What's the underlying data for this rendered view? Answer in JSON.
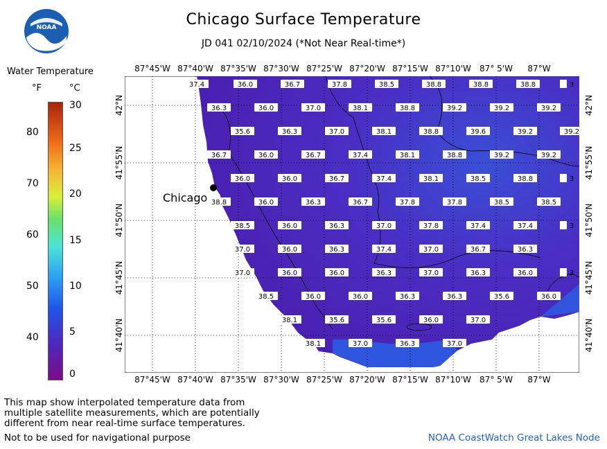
{
  "header": {
    "title": "Chicago Surface Temperature",
    "subtitle": "JD 041 02/10/2024 (*Not Near Real-time*)"
  },
  "logo": {
    "text": "NOAA"
  },
  "legend": {
    "title": "Water Temperature",
    "unit_f": "°F",
    "unit_c": "°C",
    "f_labels": [
      "80",
      "70",
      "60",
      "50",
      "40"
    ],
    "c_labels": [
      "30",
      "25",
      "20",
      "15",
      "10",
      "5",
      "0"
    ],
    "colors": [
      "#7a0d86",
      "#4a2bbf",
      "#1f57e8",
      "#2fa6f0",
      "#4fe2d6",
      "#6be06a",
      "#d8ef3a",
      "#f7b334",
      "#ee6a18",
      "#a7240d"
    ]
  },
  "map": {
    "city": "Chicago",
    "lon_labels": [
      "87°45'W",
      "87°40'W",
      "87°35'W",
      "87°30'W",
      "87°25'W",
      "87°20'W",
      "87°15'W",
      "87°10'W",
      "87° 5'W",
      "87°W"
    ],
    "lat_labels": [
      "42°N",
      "41°55'N",
      "41°50'N",
      "41°45'N",
      "41°40'N"
    ],
    "rows": [
      [
        "37.4",
        "36.0",
        "36.7",
        "37.8",
        "38.5",
        "38.8",
        "38.8",
        "38.8",
        "3"
      ],
      [
        "36.3",
        "36.0",
        "37.0",
        "38.1",
        "38.8",
        "39.2",
        "39.2",
        "39.2"
      ],
      [
        "35.6",
        "36.3",
        "37.0",
        "38.1",
        "38.8",
        "39.6",
        "39.2",
        "39.2"
      ],
      [
        "36.7",
        "36.0",
        "36.7",
        "37.4",
        "38.1",
        "38.8",
        "39.2",
        "39.2"
      ],
      [
        "36.0",
        "36.0",
        "36.7",
        "37.4",
        "38.1",
        "38.5",
        "38.8",
        "3"
      ],
      [
        "38.8",
        "36.0",
        "36.3",
        "36.7",
        "37.8",
        "37.8",
        "38.5",
        "38.5"
      ],
      [
        "38.5",
        "36.0",
        "36.3",
        "37.0",
        "37.8",
        "37.4",
        "37.4",
        "3"
      ],
      [
        "37.0",
        "36.0",
        "36.3",
        "37.4",
        "37.0",
        "36.7",
        "36.3"
      ],
      [
        "37.0",
        "36.0",
        "36.0",
        "36.3",
        "37.0",
        "36.3",
        "36.0",
        "3"
      ],
      [
        "38.5",
        "36.0",
        "36.0",
        "36.3",
        "36.3",
        "35.6",
        "36.0"
      ],
      [
        "38.1",
        "35.6",
        "35.6",
        "36.0",
        "37.0"
      ],
      [
        "38.1",
        "37.0",
        "36.3",
        "37.0"
      ]
    ]
  },
  "footer": {
    "disclaimer_1": "This map show interpolated temperature data from",
    "disclaimer_2": "multiple satellite measurements, which are potentially",
    "disclaimer_3": "different from near real-time surface temperatures.",
    "nav_warning": "Not to be used for navigational purpose",
    "credit": "NOAA CoastWatch Great Lakes Node"
  }
}
